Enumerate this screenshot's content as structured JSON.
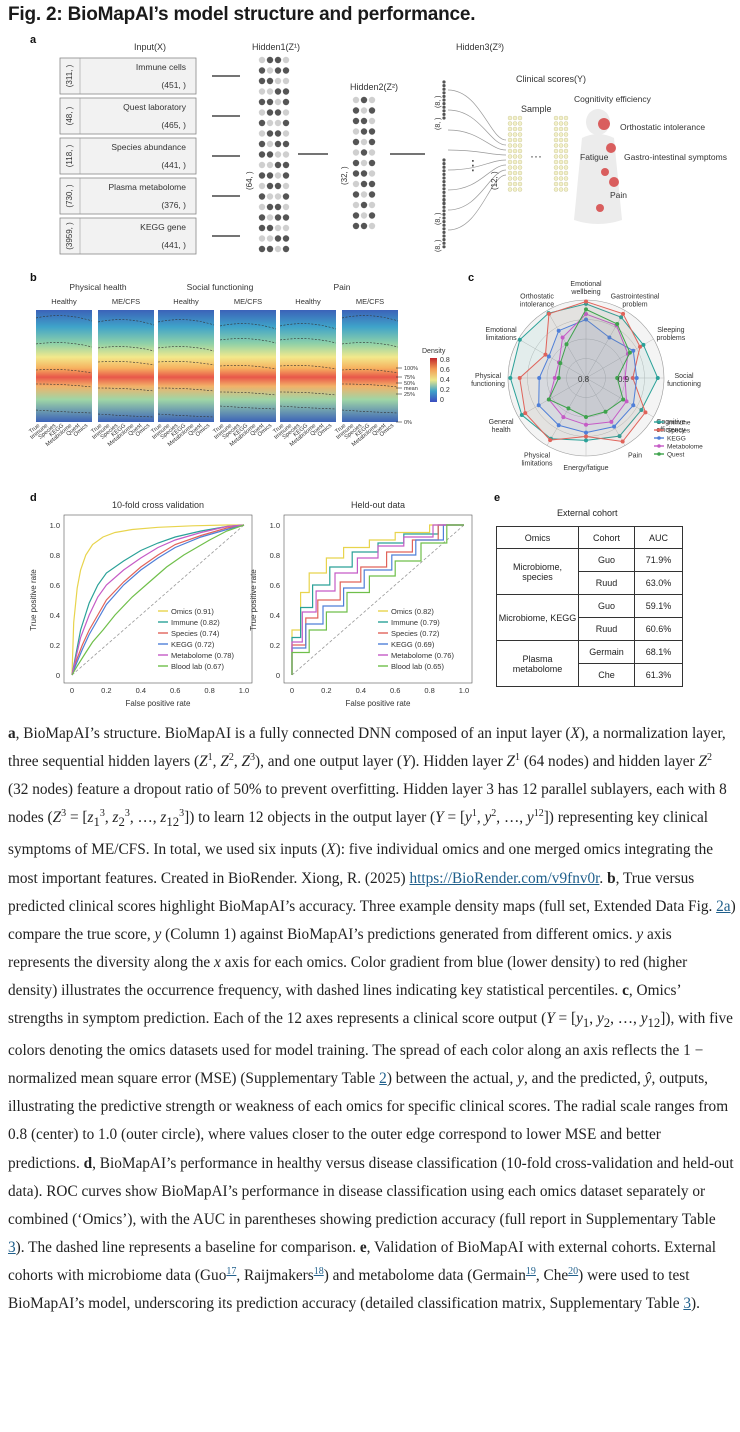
{
  "figure": {
    "title": "Fig. 2: BioMapAI’s model structure and performance."
  },
  "panel_a": {
    "label": "a",
    "input_header": "Input(X)",
    "hidden1_header": "Hidden1(Z¹)",
    "hidden2_header": "Hidden2(Z²)",
    "hidden3_header": "Hidden3(Z³)",
    "clinical_header": "Clinical scores(Y)",
    "sample_label": "Sample",
    "hidden1_dim": "(64, )",
    "hidden2_dim": "(32, )",
    "hidden3_dim": "(12, )",
    "sublayer_dim": "(8, )",
    "inputs": [
      {
        "name": "Immune cells",
        "samples": "(451, )",
        "features": "(311, )"
      },
      {
        "name": "Quest laboratory",
        "samples": "(465, )",
        "features": "(48, )"
      },
      {
        "name": "Species abundance",
        "samples": "(441, )",
        "features": "(118, )"
      },
      {
        "name": "Plasma metabolome",
        "samples": "(376, )",
        "features": "(730, )"
      },
      {
        "name": "KEGG gene",
        "samples": "(441, )",
        "features": "(3959, )"
      }
    ],
    "symptoms": [
      "Cognitivity efficiency",
      "Orthostatic intolerance",
      "Fatigue",
      "Gastro-intestinal symptoms",
      "Pain"
    ]
  },
  "panel_b": {
    "label": "b",
    "groups": [
      "Physical health",
      "Social functioning",
      "Pain"
    ],
    "subgroups": [
      "Healthy",
      "ME/CFS"
    ],
    "x_labels": [
      "True",
      "Immune",
      "Species",
      "KEGG",
      "Metabolome",
      "Quest",
      "Omics"
    ],
    "density_title": "Density",
    "density_ticks": [
      "0.8",
      "0.6",
      "0.4",
      "0.2",
      "0"
    ],
    "percentiles": [
      "100%",
      "75%",
      "50%",
      "mean",
      "25%",
      "0%"
    ]
  },
  "panel_c": {
    "label": "c",
    "axes": [
      "Emotional wellbeing",
      "Gastrointestinal problem",
      "Sleeping problems",
      "Social functioning",
      "Cognitive efficiency",
      "Pain",
      "Energy/fatigue",
      "Physical limitations",
      "General health",
      "Physical functioning",
      "Emotional limitations",
      "Orthostatic intolerance"
    ],
    "center_labels": [
      "0.8",
      "0.9"
    ],
    "legend": [
      {
        "name": "Immune",
        "color": "#2aa198"
      },
      {
        "name": "Species",
        "color": "#e0635a"
      },
      {
        "name": "KEGG",
        "color": "#4f7fd8"
      },
      {
        "name": "Metabolome",
        "color": "#c55bc6"
      },
      {
        "name": "Quest",
        "color": "#3fa34d"
      }
    ]
  },
  "panel_d": {
    "label": "d",
    "xlabel": "False positive rate",
    "ylabel": "True positive rate",
    "ticks": [
      "0",
      "0.2",
      "0.4",
      "0.6",
      "0.8",
      "1.0"
    ]
  },
  "chart_data": [
    {
      "type": "line",
      "title": "10-fold cross validation",
      "xlabel": "False positive rate",
      "ylabel": "True positive rate",
      "xlim": [
        0,
        1
      ],
      "ylim": [
        0,
        1
      ],
      "series": [
        {
          "name": "Omics (0.91)",
          "color": "#e8d44d",
          "x": [
            0,
            0.01,
            0.03,
            0.05,
            0.08,
            0.12,
            0.18,
            0.25,
            0.35,
            0.5,
            0.7,
            0.9,
            1
          ],
          "y": [
            0,
            0.35,
            0.58,
            0.7,
            0.8,
            0.87,
            0.92,
            0.95,
            0.97,
            0.985,
            0.995,
            1,
            1
          ]
        },
        {
          "name": "Immune (0.82)",
          "color": "#2aa198",
          "x": [
            0,
            0.02,
            0.05,
            0.1,
            0.15,
            0.2,
            0.3,
            0.4,
            0.5,
            0.6,
            0.75,
            0.9,
            1
          ],
          "y": [
            0,
            0.12,
            0.3,
            0.48,
            0.6,
            0.68,
            0.76,
            0.83,
            0.88,
            0.92,
            0.96,
            0.99,
            1
          ]
        },
        {
          "name": "Species (0.74)",
          "color": "#e0635a",
          "x": [
            0,
            0.02,
            0.06,
            0.1,
            0.15,
            0.2,
            0.3,
            0.4,
            0.5,
            0.6,
            0.75,
            0.9,
            1
          ],
          "y": [
            0,
            0.08,
            0.2,
            0.3,
            0.4,
            0.5,
            0.62,
            0.72,
            0.8,
            0.87,
            0.93,
            0.98,
            1
          ]
        },
        {
          "name": "KEGG (0.72)",
          "color": "#4f7fd8",
          "x": [
            0,
            0.02,
            0.06,
            0.1,
            0.15,
            0.2,
            0.3,
            0.4,
            0.5,
            0.6,
            0.75,
            0.9,
            1
          ],
          "y": [
            0,
            0.06,
            0.17,
            0.27,
            0.37,
            0.47,
            0.6,
            0.7,
            0.78,
            0.85,
            0.92,
            0.97,
            1
          ]
        },
        {
          "name": "Metabolome (0.78)",
          "color": "#c55bc6",
          "x": [
            0,
            0.02,
            0.05,
            0.1,
            0.15,
            0.2,
            0.3,
            0.4,
            0.5,
            0.6,
            0.75,
            0.9,
            1
          ],
          "y": [
            0,
            0.1,
            0.25,
            0.4,
            0.52,
            0.6,
            0.7,
            0.78,
            0.85,
            0.9,
            0.95,
            0.99,
            1
          ]
        },
        {
          "name": "Blood lab (0.67)",
          "color": "#6fbf4a",
          "x": [
            0,
            0.03,
            0.08,
            0.12,
            0.18,
            0.25,
            0.35,
            0.45,
            0.55,
            0.65,
            0.8,
            0.9,
            1
          ],
          "y": [
            0,
            0.06,
            0.15,
            0.22,
            0.3,
            0.4,
            0.52,
            0.62,
            0.72,
            0.8,
            0.9,
            0.96,
            1
          ]
        }
      ]
    },
    {
      "type": "line",
      "title": "Held-out data",
      "xlabel": "False positive rate",
      "ylabel": "True positive rate",
      "xlim": [
        0,
        1
      ],
      "ylim": [
        0,
        1
      ],
      "series": [
        {
          "name": "Omics (0.82)",
          "color": "#e8d44d",
          "x": [
            0,
            0,
            0.05,
            0.05,
            0.1,
            0.1,
            0.2,
            0.2,
            0.3,
            0.3,
            0.45,
            0.45,
            0.6,
            0.6,
            0.8,
            0.8,
            1
          ],
          "y": [
            0,
            0.3,
            0.3,
            0.55,
            0.55,
            0.68,
            0.68,
            0.78,
            0.78,
            0.85,
            0.85,
            0.9,
            0.9,
            0.95,
            0.95,
            1,
            1
          ]
        },
        {
          "name": "Immune (0.79)",
          "color": "#2aa198",
          "x": [
            0,
            0,
            0.05,
            0.05,
            0.12,
            0.12,
            0.22,
            0.22,
            0.35,
            0.35,
            0.5,
            0.5,
            0.65,
            0.65,
            0.85,
            0.85,
            1
          ],
          "y": [
            0,
            0.25,
            0.25,
            0.45,
            0.45,
            0.6,
            0.6,
            0.72,
            0.72,
            0.82,
            0.82,
            0.88,
            0.88,
            0.94,
            0.94,
            1,
            1
          ]
        },
        {
          "name": "Species (0.72)",
          "color": "#e0635a",
          "x": [
            0,
            0,
            0.08,
            0.08,
            0.15,
            0.15,
            0.28,
            0.28,
            0.4,
            0.4,
            0.55,
            0.55,
            0.7,
            0.7,
            0.85,
            0.85,
            1
          ],
          "y": [
            0,
            0.2,
            0.2,
            0.38,
            0.38,
            0.5,
            0.5,
            0.62,
            0.62,
            0.72,
            0.72,
            0.82,
            0.82,
            0.9,
            0.9,
            1,
            1
          ]
        },
        {
          "name": "KEGG (0.69)",
          "color": "#4f7fd8",
          "x": [
            0,
            0,
            0.08,
            0.08,
            0.18,
            0.18,
            0.3,
            0.3,
            0.42,
            0.42,
            0.58,
            0.58,
            0.72,
            0.72,
            0.88,
            0.88,
            1
          ],
          "y": [
            0,
            0.18,
            0.18,
            0.34,
            0.34,
            0.46,
            0.46,
            0.58,
            0.58,
            0.7,
            0.7,
            0.8,
            0.8,
            0.9,
            0.9,
            1,
            1
          ]
        },
        {
          "name": "Metabolome (0.76)",
          "color": "#c55bc6",
          "x": [
            0,
            0,
            0.06,
            0.06,
            0.14,
            0.14,
            0.25,
            0.25,
            0.38,
            0.38,
            0.5,
            0.5,
            0.65,
            0.65,
            0.82,
            0.82,
            1
          ],
          "y": [
            0,
            0.22,
            0.22,
            0.42,
            0.42,
            0.56,
            0.56,
            0.68,
            0.68,
            0.78,
            0.78,
            0.86,
            0.86,
            0.92,
            0.92,
            1,
            1
          ]
        },
        {
          "name": "Blood lab (0.65)",
          "color": "#6fbf4a",
          "x": [
            0,
            0,
            0.1,
            0.1,
            0.2,
            0.2,
            0.32,
            0.32,
            0.45,
            0.45,
            0.6,
            0.6,
            0.75,
            0.75,
            0.9,
            0.9,
            1
          ],
          "y": [
            0,
            0.15,
            0.15,
            0.3,
            0.3,
            0.42,
            0.42,
            0.55,
            0.55,
            0.66,
            0.66,
            0.76,
            0.76,
            0.88,
            0.88,
            1,
            1
          ]
        }
      ]
    },
    {
      "type": "table",
      "title": "External cohort",
      "columns": [
        "Omics",
        "Cohort",
        "AUC"
      ],
      "rows": [
        {
          "omics": "Microbiome, species",
          "cohort": "Guo",
          "auc": "71.9%"
        },
        {
          "omics": "",
          "cohort": "Ruud",
          "auc": "63.0%"
        },
        {
          "omics": "Microbiome, KEGG",
          "cohort": "Guo",
          "auc": "59.1%"
        },
        {
          "omics": "",
          "cohort": "Ruud",
          "auc": "60.6%"
        },
        {
          "omics": "Plasma metabolome",
          "cohort": "Germain",
          "auc": "68.1%"
        },
        {
          "omics": "",
          "cohort": "Che",
          "auc": "61.3%"
        }
      ]
    }
  ],
  "panel_e": {
    "label": "e"
  }
}
